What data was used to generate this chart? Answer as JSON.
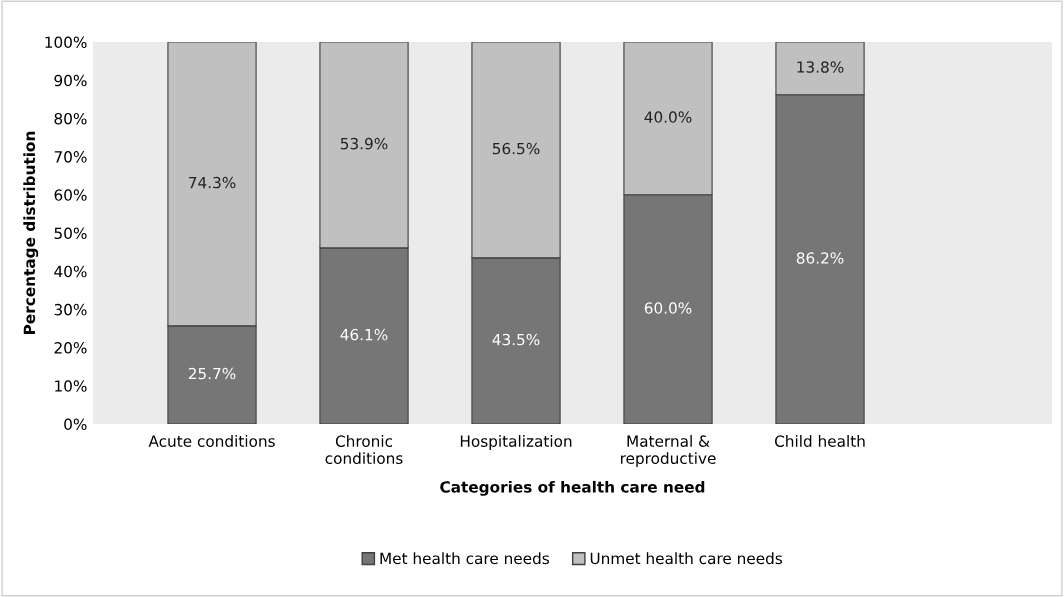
{
  "chart_data": {
    "type": "bar",
    "stacked": true,
    "xlabel": "Categories of health care need",
    "ylabel": "Percentage distribution",
    "categories": [
      "Acute conditions",
      "Chronic\nconditions",
      "Hospitalization",
      "Maternal &\nreproductive",
      "Child health"
    ],
    "series": [
      {
        "name": "Met health care needs",
        "color": "#767676",
        "values": [
          25.7,
          46.1,
          43.5,
          60.0,
          86.2
        ]
      },
      {
        "name": "Unmet health care needs",
        "color": "#c0c0c0",
        "values": [
          74.3,
          53.9,
          56.5,
          40.0,
          13.8
        ]
      }
    ],
    "value_labels": [
      [
        "25.7%",
        "46.1%",
        "43.5%",
        "60.0%",
        "86.2%"
      ],
      [
        "74.3%",
        "53.9%",
        "56.5%",
        "40.0%",
        "13.8%"
      ]
    ],
    "ylim": [
      0,
      100
    ],
    "yticks": [
      {
        "value": 0,
        "label": "0%"
      },
      {
        "value": 10,
        "label": "10%"
      },
      {
        "value": 20,
        "label": "20%"
      },
      {
        "value": 30,
        "label": "30%"
      },
      {
        "value": 40,
        "label": "40%"
      },
      {
        "value": 50,
        "label": "50%"
      },
      {
        "value": 60,
        "label": "60%"
      },
      {
        "value": 70,
        "label": "70%"
      },
      {
        "value": 80,
        "label": "80%"
      },
      {
        "value": 90,
        "label": "90%"
      },
      {
        "value": 100,
        "label": "100%"
      }
    ],
    "grid": false,
    "legend": "bottom"
  }
}
